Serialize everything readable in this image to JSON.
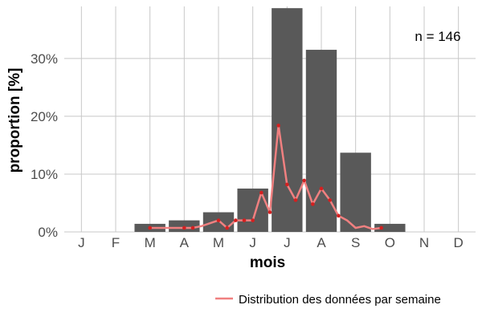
{
  "chart_data": {
    "type": "bar",
    "categories": [
      "J",
      "F",
      "M",
      "A",
      "M",
      "J",
      "J",
      "A",
      "S",
      "O",
      "N",
      "D"
    ],
    "values": [
      0,
      0,
      1.4,
      2.0,
      3.4,
      7.5,
      38.7,
      31.5,
      13.7,
      1.4,
      0,
      0
    ],
    "xlabel": "mois",
    "ylabel": "proportion [%]",
    "ylim": [
      0,
      39
    ],
    "yticks": [
      0,
      10,
      20,
      30
    ],
    "ytick_labels": [
      "0%",
      "10%",
      "20%",
      "30%"
    ],
    "grid": true,
    "annotation": "n = 146",
    "bar_color": "#595959",
    "line_series": {
      "name": "Distribution des données par semaine",
      "color": "#f08080",
      "point_color": "#d42020",
      "x": [
        3.0,
        3.25,
        3.5,
        3.75,
        4.0,
        4.25,
        4.5,
        4.75,
        5.0,
        5.25,
        5.5,
        5.75,
        6.0,
        6.25,
        6.5,
        6.75,
        7.0,
        7.25,
        7.5,
        7.75,
        8.0,
        8.25,
        8.5,
        8.75,
        9.0,
        9.25,
        9.5,
        9.75
      ],
      "values": [
        0.7,
        0.7,
        0.7,
        0.7,
        0.7,
        0.7,
        1.0,
        1.5,
        2.0,
        0.7,
        2.0,
        2.0,
        2.0,
        6.8,
        3.4,
        18.4,
        8.2,
        5.5,
        8.9,
        4.8,
        7.5,
        5.5,
        2.8,
        2.0,
        0.7,
        1.0,
        0.5,
        0.7
      ],
      "marker_x": [
        3.0,
        4.0,
        4.25,
        5.0,
        5.25,
        5.5,
        5.75,
        6.0,
        6.25,
        6.5,
        6.75,
        7.0,
        7.25,
        7.5,
        7.75,
        8.0,
        8.25,
        8.5,
        9.75
      ]
    },
    "legend": {
      "position": "bottom-right"
    }
  }
}
